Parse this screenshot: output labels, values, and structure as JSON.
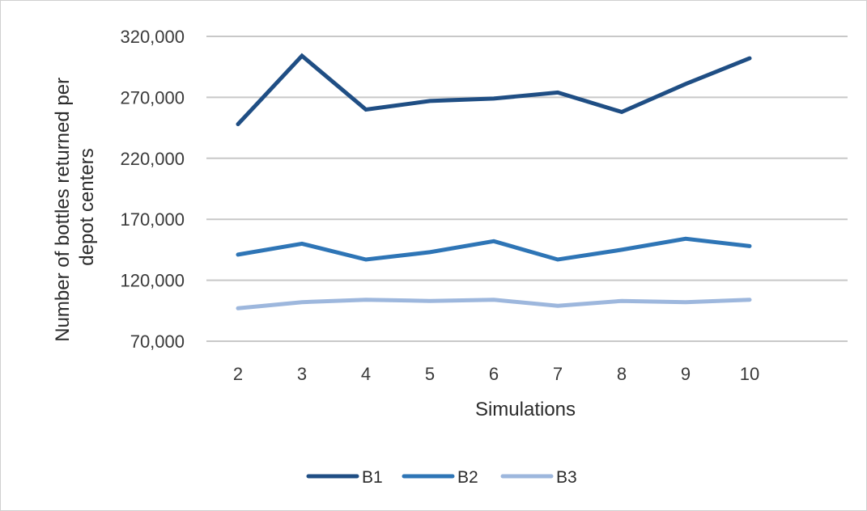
{
  "chart_data": {
    "type": "line",
    "title": "",
    "xlabel": "Simulations",
    "ylabel_lines": [
      "Number of bottles returned per",
      "depot centers"
    ],
    "categories": [
      "2",
      "3",
      "4",
      "5",
      "6",
      "7",
      "8",
      "9",
      "10"
    ],
    "y_ticks": [
      {
        "value": 70000,
        "label": "70,000"
      },
      {
        "value": 120000,
        "label": "120,000"
      },
      {
        "value": 170000,
        "label": "170,000"
      },
      {
        "value": 220000,
        "label": "220,000"
      },
      {
        "value": 270000,
        "label": "270,000"
      },
      {
        "value": 320000,
        "label": "320,000"
      }
    ],
    "ylim": [
      70000,
      320000
    ],
    "grid": true,
    "legend_position": "bottom",
    "series": [
      {
        "name": "B1",
        "color": "#1f4e84",
        "values": [
          248000,
          304000,
          260000,
          267000,
          269000,
          274000,
          258000,
          281000,
          302000
        ]
      },
      {
        "name": "B2",
        "color": "#2e75b6",
        "values": [
          141000,
          150000,
          137000,
          143000,
          152000,
          137000,
          145000,
          154000,
          148000
        ]
      },
      {
        "name": "B3",
        "color": "#9db7dd",
        "values": [
          97000,
          102000,
          104000,
          103000,
          104000,
          99000,
          103000,
          102000,
          104000
        ]
      }
    ]
  }
}
